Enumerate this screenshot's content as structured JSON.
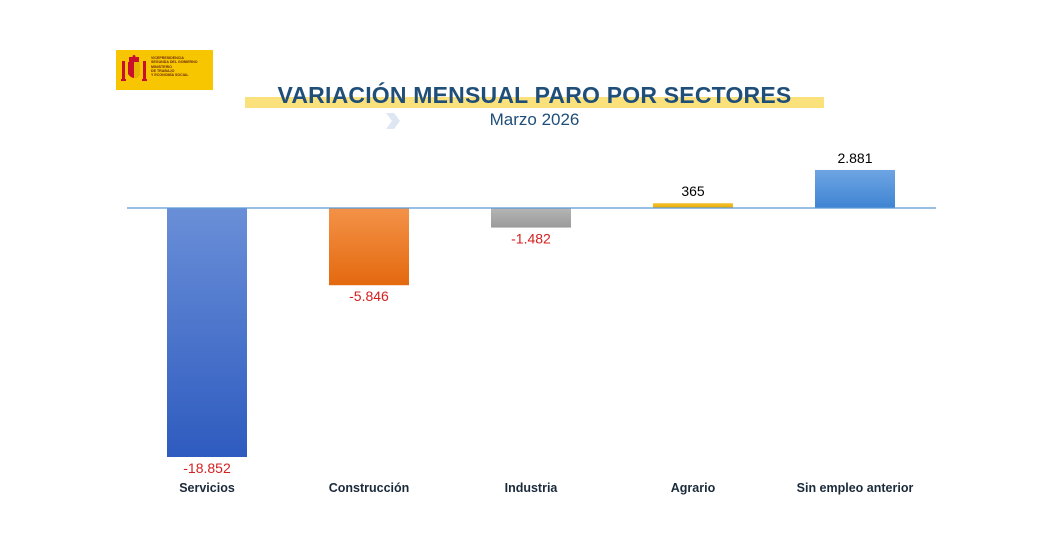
{
  "logo": {
    "text": "VICEPRESIDENCIA\nSEGUNDA DEL GOBIERNO\nMINISTERIO\nDE TRABAJO\nY ECONOMÍA SOCIAL",
    "icon": "spain-coat-of-arms-icon"
  },
  "header": {
    "title": "VARIACIÓN MENSUAL PARO POR SECTORES",
    "subtitle": "Marzo 2026"
  },
  "colors": {
    "title": "#1f4e79",
    "highlight": "#fbe17c",
    "negative_label": "#d42020",
    "positive_label": "#000000",
    "axis": "#5b9bd5"
  },
  "chart_data": {
    "type": "bar",
    "title": "VARIACIÓN MENSUAL PARO POR SECTORES",
    "subtitle": "Marzo 2026",
    "categories": [
      "Servicios",
      "Construcción",
      "Industria",
      "Agrario",
      "Sin empleo anterior"
    ],
    "values": [
      -18852,
      -5846,
      -1482,
      365,
      2881
    ],
    "value_labels": [
      "-18.852",
      "-5.846",
      "-1.482",
      "365",
      "2.881"
    ],
    "bar_colors": [
      [
        "#6a8fd8",
        "#2e5bbf"
      ],
      [
        "#f39248",
        "#e4690f"
      ],
      [
        "#b5b5b5",
        "#9a9a9a"
      ],
      [
        "#f5c232",
        "#e9ac05"
      ],
      [
        "#6ea5e3",
        "#3f84d3"
      ]
    ],
    "ylim": [
      -18852,
      2881
    ],
    "xlabel": "",
    "ylabel": "",
    "grid": false,
    "legend": "none"
  }
}
